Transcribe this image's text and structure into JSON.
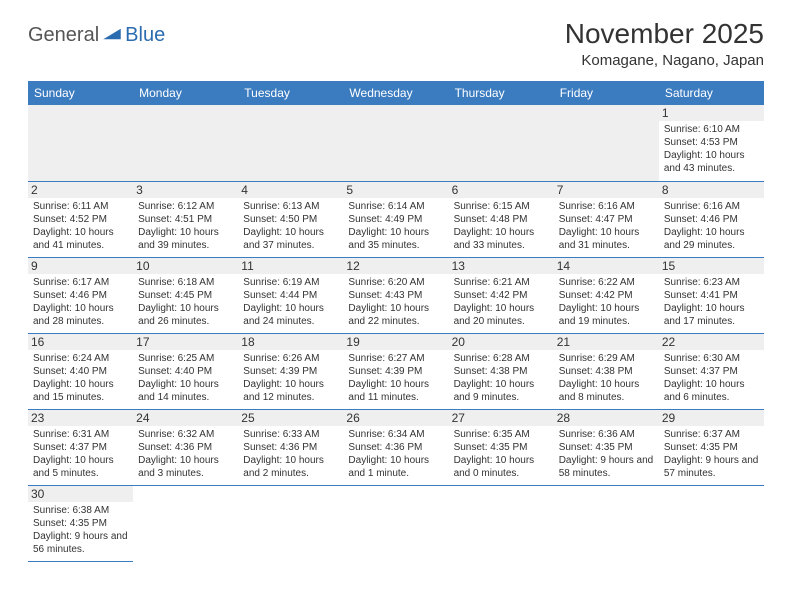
{
  "logo": {
    "text1": "General",
    "text2": "Blue"
  },
  "title": "November 2025",
  "location": "Komagane, Nagano, Japan",
  "header_bg": "#3b7bbf",
  "days_of_week": [
    "Sunday",
    "Monday",
    "Tuesday",
    "Wednesday",
    "Thursday",
    "Friday",
    "Saturday"
  ],
  "weeks": [
    [
      null,
      null,
      null,
      null,
      null,
      null,
      {
        "n": "1",
        "sunrise": "6:10 AM",
        "sunset": "4:53 PM",
        "daylight": "10 hours and 43 minutes."
      }
    ],
    [
      {
        "n": "2",
        "sunrise": "6:11 AM",
        "sunset": "4:52 PM",
        "daylight": "10 hours and 41 minutes."
      },
      {
        "n": "3",
        "sunrise": "6:12 AM",
        "sunset": "4:51 PM",
        "daylight": "10 hours and 39 minutes."
      },
      {
        "n": "4",
        "sunrise": "6:13 AM",
        "sunset": "4:50 PM",
        "daylight": "10 hours and 37 minutes."
      },
      {
        "n": "5",
        "sunrise": "6:14 AM",
        "sunset": "4:49 PM",
        "daylight": "10 hours and 35 minutes."
      },
      {
        "n": "6",
        "sunrise": "6:15 AM",
        "sunset": "4:48 PM",
        "daylight": "10 hours and 33 minutes."
      },
      {
        "n": "7",
        "sunrise": "6:16 AM",
        "sunset": "4:47 PM",
        "daylight": "10 hours and 31 minutes."
      },
      {
        "n": "8",
        "sunrise": "6:16 AM",
        "sunset": "4:46 PM",
        "daylight": "10 hours and 29 minutes."
      }
    ],
    [
      {
        "n": "9",
        "sunrise": "6:17 AM",
        "sunset": "4:46 PM",
        "daylight": "10 hours and 28 minutes."
      },
      {
        "n": "10",
        "sunrise": "6:18 AM",
        "sunset": "4:45 PM",
        "daylight": "10 hours and 26 minutes."
      },
      {
        "n": "11",
        "sunrise": "6:19 AM",
        "sunset": "4:44 PM",
        "daylight": "10 hours and 24 minutes."
      },
      {
        "n": "12",
        "sunrise": "6:20 AM",
        "sunset": "4:43 PM",
        "daylight": "10 hours and 22 minutes."
      },
      {
        "n": "13",
        "sunrise": "6:21 AM",
        "sunset": "4:42 PM",
        "daylight": "10 hours and 20 minutes."
      },
      {
        "n": "14",
        "sunrise": "6:22 AM",
        "sunset": "4:42 PM",
        "daylight": "10 hours and 19 minutes."
      },
      {
        "n": "15",
        "sunrise": "6:23 AM",
        "sunset": "4:41 PM",
        "daylight": "10 hours and 17 minutes."
      }
    ],
    [
      {
        "n": "16",
        "sunrise": "6:24 AM",
        "sunset": "4:40 PM",
        "daylight": "10 hours and 15 minutes."
      },
      {
        "n": "17",
        "sunrise": "6:25 AM",
        "sunset": "4:40 PM",
        "daylight": "10 hours and 14 minutes."
      },
      {
        "n": "18",
        "sunrise": "6:26 AM",
        "sunset": "4:39 PM",
        "daylight": "10 hours and 12 minutes."
      },
      {
        "n": "19",
        "sunrise": "6:27 AM",
        "sunset": "4:39 PM",
        "daylight": "10 hours and 11 minutes."
      },
      {
        "n": "20",
        "sunrise": "6:28 AM",
        "sunset": "4:38 PM",
        "daylight": "10 hours and 9 minutes."
      },
      {
        "n": "21",
        "sunrise": "6:29 AM",
        "sunset": "4:38 PM",
        "daylight": "10 hours and 8 minutes."
      },
      {
        "n": "22",
        "sunrise": "6:30 AM",
        "sunset": "4:37 PM",
        "daylight": "10 hours and 6 minutes."
      }
    ],
    [
      {
        "n": "23",
        "sunrise": "6:31 AM",
        "sunset": "4:37 PM",
        "daylight": "10 hours and 5 minutes."
      },
      {
        "n": "24",
        "sunrise": "6:32 AM",
        "sunset": "4:36 PM",
        "daylight": "10 hours and 3 minutes."
      },
      {
        "n": "25",
        "sunrise": "6:33 AM",
        "sunset": "4:36 PM",
        "daylight": "10 hours and 2 minutes."
      },
      {
        "n": "26",
        "sunrise": "6:34 AM",
        "sunset": "4:36 PM",
        "daylight": "10 hours and 1 minute."
      },
      {
        "n": "27",
        "sunrise": "6:35 AM",
        "sunset": "4:35 PM",
        "daylight": "10 hours and 0 minutes."
      },
      {
        "n": "28",
        "sunrise": "6:36 AM",
        "sunset": "4:35 PM",
        "daylight": "9 hours and 58 minutes."
      },
      {
        "n": "29",
        "sunrise": "6:37 AM",
        "sunset": "4:35 PM",
        "daylight": "9 hours and 57 minutes."
      }
    ],
    [
      {
        "n": "30",
        "sunrise": "6:38 AM",
        "sunset": "4:35 PM",
        "daylight": "9 hours and 56 minutes."
      },
      null,
      null,
      null,
      null,
      null,
      null
    ]
  ],
  "labels": {
    "sunrise_prefix": "Sunrise: ",
    "sunset_prefix": "Sunset: ",
    "daylight_prefix": "Daylight: "
  }
}
